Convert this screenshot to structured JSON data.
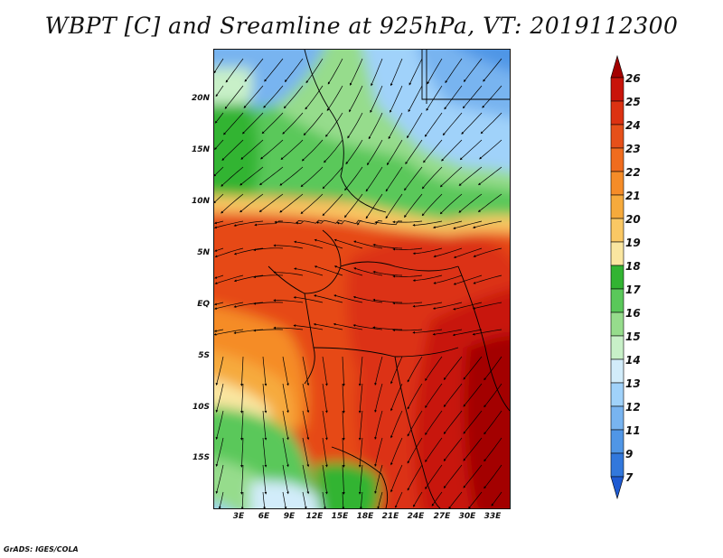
{
  "title": "WBPT [C] and Sreamline at 925hPa, VT: 2019112300",
  "footer": "GrADS: IGES/COLA",
  "map": {
    "fields": [
      "WBPT [C]",
      "Streamline"
    ],
    "level": "925hPa",
    "valid_time": "2019112300",
    "latitude_labels": [
      "20N",
      "15N",
      "10N",
      "5N",
      "EQ",
      "5S",
      "10S",
      "15S"
    ],
    "longitude_labels": [
      "3E",
      "6E",
      "9E",
      "12E",
      "15E",
      "18E",
      "21E",
      "24E",
      "27E",
      "30E",
      "33E"
    ]
  },
  "colorbar": {
    "labels": [
      "26",
      "25",
      "24",
      "23",
      "22",
      "21",
      "20",
      "19",
      "18",
      "17",
      "16",
      "15",
      "14",
      "13",
      "12",
      "11",
      "9",
      "7"
    ],
    "colors": [
      "#a30000",
      "#c8140a",
      "#dc3212",
      "#e6501a",
      "#f06c1e",
      "#f58c28",
      "#f6aa3c",
      "#fac864",
      "#fae6a0",
      "#32b432",
      "#5ac85a",
      "#96dc8c",
      "#c8f0c8",
      "#d2ecfa",
      "#a0d2fa",
      "#78b4f0",
      "#5096e6",
      "#3278dc",
      "#1e5ad2"
    ]
  }
}
